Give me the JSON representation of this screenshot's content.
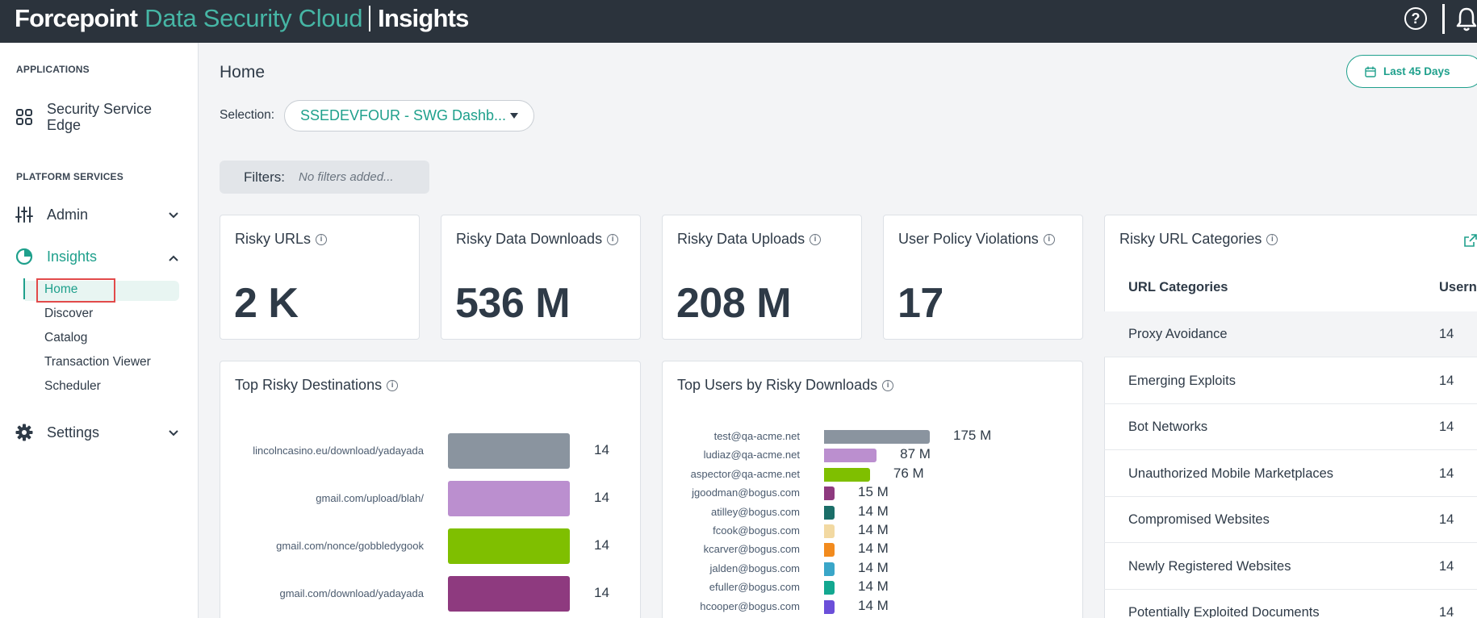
{
  "header": {
    "brand": "Forcepoint",
    "product": "Data Security Cloud",
    "module": "Insights"
  },
  "sidebar": {
    "applications_heading": "APPLICATIONS",
    "sse_label": "Security Service Edge",
    "platform_heading": "PLATFORM SERVICES",
    "admin_label": "Admin",
    "insights_label": "Insights",
    "sub_items": [
      "Home",
      "Discover",
      "Catalog",
      "Transaction Viewer",
      "Scheduler"
    ],
    "settings_label": "Settings"
  },
  "page": {
    "title": "Home",
    "date_range": "Last 45 Days",
    "selection_label": "Selection:",
    "selection_value": "SSEDEVFOUR - SWG Dashb...",
    "filters_label": "Filters:",
    "filters_value": "No filters added..."
  },
  "kpis": [
    {
      "title": "Risky URLs",
      "value": "2 K"
    },
    {
      "title": "Risky Data Downloads",
      "value": "536 M"
    },
    {
      "title": "Risky Data Uploads",
      "value": "208 M"
    },
    {
      "title": "User Policy Violations",
      "value": "17"
    }
  ],
  "top_destinations": {
    "title": "Top Risky Destinations"
  },
  "top_users": {
    "title": "Top Users by Risky Downloads"
  },
  "url_categories": {
    "title": "Risky URL Categories",
    "col1": "URL Categories",
    "col2": "Usern",
    "rows": [
      {
        "category": "Proxy Avoidance",
        "count": "14"
      },
      {
        "category": "Emerging Exploits",
        "count": "14"
      },
      {
        "category": "Bot Networks",
        "count": "14"
      },
      {
        "category": "Unauthorized Mobile Marketplaces",
        "count": "14"
      },
      {
        "category": "Compromised Websites",
        "count": "14"
      },
      {
        "category": "Newly Registered Websites",
        "count": "14"
      },
      {
        "category": "Potentially Exploited Documents",
        "count": "14"
      }
    ]
  },
  "chart_data": [
    {
      "type": "bar",
      "title": "Top Risky Destinations",
      "orientation": "horizontal",
      "categories": [
        "lincolncasino.eu/download/yadayada",
        "gmail.com/upload/blah/",
        "gmail.com/nonce/gobbledygook",
        "gmail.com/download/yadayada"
      ],
      "values": [
        14,
        14,
        14,
        14
      ],
      "labels": [
        "14",
        "14",
        "14",
        "14"
      ],
      "colors": [
        "#8a949f",
        "#bb8fcf",
        "#7fbf00",
        "#8e3a7f"
      ]
    },
    {
      "type": "bar",
      "title": "Top Users by Risky Downloads",
      "orientation": "horizontal",
      "categories": [
        "test@qa-acme.net",
        "ludiaz@qa-acme.net",
        "aspector@qa-acme.net",
        "jgoodman@bogus.com",
        "atilley@bogus.com",
        "fcook@bogus.com",
        "kcarver@bogus.com",
        "jalden@bogus.com",
        "efuller@bogus.com",
        "hcooper@bogus.com"
      ],
      "values": [
        175,
        87,
        76,
        15,
        14,
        14,
        14,
        14,
        14,
        14
      ],
      "labels": [
        "175 M",
        "87 M",
        "76 M",
        "15 M",
        "14 M",
        "14 M",
        "14 M",
        "14 M",
        "14 M",
        "14 M"
      ],
      "colors": [
        "#8a949f",
        "#bb8fcf",
        "#7fbf00",
        "#8e3a7f",
        "#1b6e68",
        "#f2d9a2",
        "#f28b1e",
        "#3aa6c8",
        "#13a890",
        "#6b4fd9"
      ]
    }
  ]
}
